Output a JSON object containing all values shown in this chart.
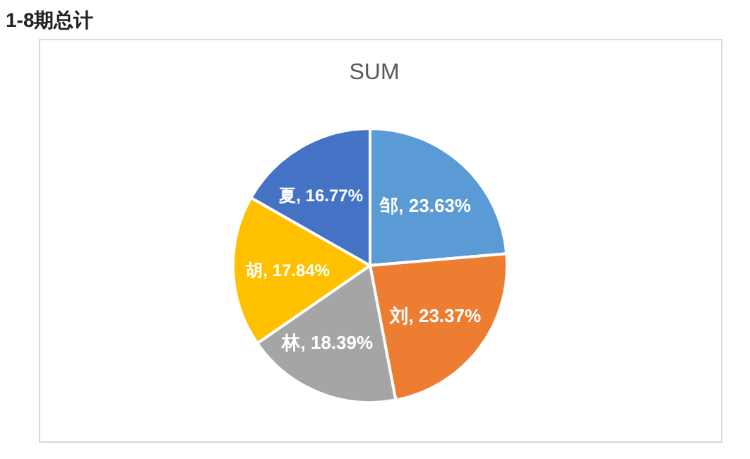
{
  "chart_data": {
    "type": "pie",
    "title": "1-8期总计",
    "subtitle": "SUM",
    "categories": [
      "邹",
      "刘",
      "林",
      "胡",
      "夏"
    ],
    "values": [
      23.63,
      23.37,
      18.39,
      17.84,
      16.77
    ],
    "colors": [
      "#5b9bd5",
      "#ed7d31",
      "#a5a5a5",
      "#ffc000",
      "#4472c4"
    ],
    "value_labels": [
      "23.63%",
      "23.37%",
      "18.39%",
      "17.84%",
      "16.77%"
    ]
  }
}
